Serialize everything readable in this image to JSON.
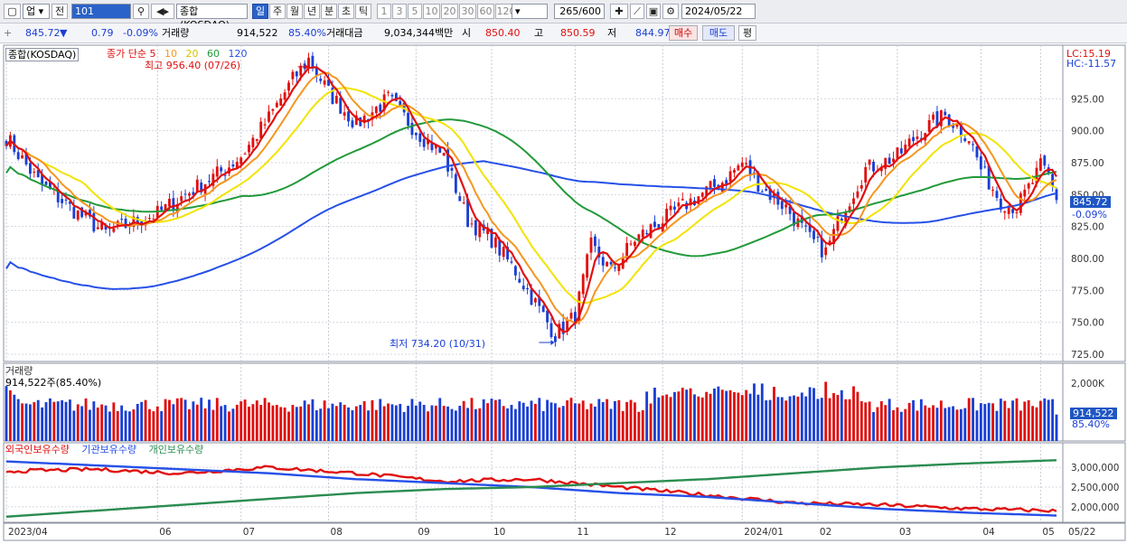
{
  "toolbar": {
    "market": "업",
    "prev": "전",
    "code": "101",
    "index_name": "종합(KOSDAQ)",
    "periods": [
      "일",
      "주",
      "월",
      "년",
      "분",
      "초",
      "틱"
    ],
    "active_period": "일",
    "intervals": [
      "1",
      "3",
      "5",
      "10",
      "20",
      "30",
      "60",
      "120"
    ],
    "count": "265",
    "count_max": "/600",
    "date": "2024/05/22"
  },
  "quote": {
    "price": "845.72",
    "arrow": "▼",
    "change": "0.79",
    "change_pct": "-0.09%",
    "volume_label": "거래량",
    "volume": "914,522",
    "volume_pct": "85.40%",
    "amount_label": "거래대금",
    "amount": "9,034,344백만",
    "open_label": "시",
    "open": "850.40",
    "high_label": "고",
    "high": "850.59",
    "low_label": "저",
    "low": "844.97",
    "buy": "매수",
    "sell": "매도",
    "flat": "평"
  },
  "colors": {
    "up": "#e01010",
    "down": "#1a3fd4",
    "ma5": "#e01010",
    "ma10": "#f5961e",
    "ma20": "#f2e300",
    "ma60": "#229a3a",
    "ma120": "#2650e8",
    "foreign": "#e01010",
    "institution": "#2650e8",
    "individual": "#2a8c50"
  },
  "price_panel": {
    "name": "종합(KOSDAQ)",
    "ma_prefix": "종가 단순",
    "ma_periods": [
      "5",
      "10",
      "20",
      "60",
      "120"
    ],
    "high_label": "최고 956.40 (07/26)",
    "low_label": "최저 734.20 (10/31)",
    "lc": "LC:15.19",
    "hc": "HC:-11.57",
    "last": "845.72",
    "last_pct": "-0.09%"
  },
  "volume_panel": {
    "title": "거래량",
    "last_label": "914,522주(85.40%)",
    "last": "914,522",
    "last_pct": "85.40%"
  },
  "holdings_panel": {
    "series": [
      "외국인보유수량",
      "기관보유수량",
      "개인보유수량"
    ]
  },
  "x_axis": [
    "2023/04",
    "06",
    "07",
    "08",
    "09",
    "10",
    "11",
    "12",
    "2024/01",
    "02",
    "03",
    "04",
    "05",
    "05/22"
  ],
  "chart_data": [
    {
      "type": "candlestick",
      "title": "종합(KOSDAQ)",
      "x": [
        "2023/04",
        "06",
        "07",
        "08",
        "09",
        "10",
        "11",
        "12",
        "2024/01",
        "02",
        "03",
        "04",
        "05"
      ],
      "close": [
        895,
        830,
        875,
        940,
        880,
        845,
        775,
        835,
        865,
        820,
        890,
        900,
        865
      ],
      "last_close": 845.72,
      "high": 956.4,
      "high_date": "07/26",
      "low": 734.2,
      "low_date": "10/31",
      "moving_averages": [
        5,
        10,
        20,
        60,
        120
      ],
      "ylim": [
        725,
        950
      ],
      "yticks": [
        "925.00",
        "900.00",
        "875.00",
        "850.00",
        "825.00",
        "800.00",
        "775.00",
        "750.00",
        "725.00"
      ]
    },
    {
      "type": "bar",
      "title": "거래량",
      "ylim": [
        0,
        2000000
      ],
      "yticks": [
        "2,000K"
      ],
      "last_value": 914522
    },
    {
      "type": "line",
      "series": [
        {
          "name": "외국인보유수량",
          "x": [
            "2023/04",
            "06",
            "07",
            "08",
            "09",
            "10",
            "11",
            "12",
            "2024/01",
            "02",
            "03",
            "04",
            "05"
          ],
          "values": [
            2900000,
            2950000,
            2850000,
            3000000,
            2850000,
            2650000,
            2700000,
            2500000,
            2300000,
            2100000,
            2050000,
            1950000,
            1900000
          ]
        },
        {
          "name": "기관보유수량",
          "x": [
            "2023/04",
            "06",
            "07",
            "08",
            "09",
            "10",
            "11",
            "12",
            "2024/01",
            "02",
            "03",
            "04",
            "05"
          ],
          "values": [
            3150000,
            3050000,
            2950000,
            2850000,
            2700000,
            2600000,
            2500000,
            2350000,
            2250000,
            2100000,
            1950000,
            1850000,
            1780000
          ]
        },
        {
          "name": "개인보유수량",
          "x": [
            "2023/04",
            "06",
            "07",
            "08",
            "09",
            "10",
            "11",
            "12",
            "2024/01",
            "02",
            "03",
            "04",
            "05"
          ],
          "values": [
            1750000,
            1900000,
            2050000,
            2200000,
            2350000,
            2450000,
            2500000,
            2600000,
            2700000,
            2850000,
            3000000,
            3100000,
            3180000
          ]
        }
      ],
      "ylim": [
        1700000,
        3300000
      ],
      "yticks": [
        "3,000,000",
        "2,500,000",
        "2,000,000"
      ]
    }
  ]
}
